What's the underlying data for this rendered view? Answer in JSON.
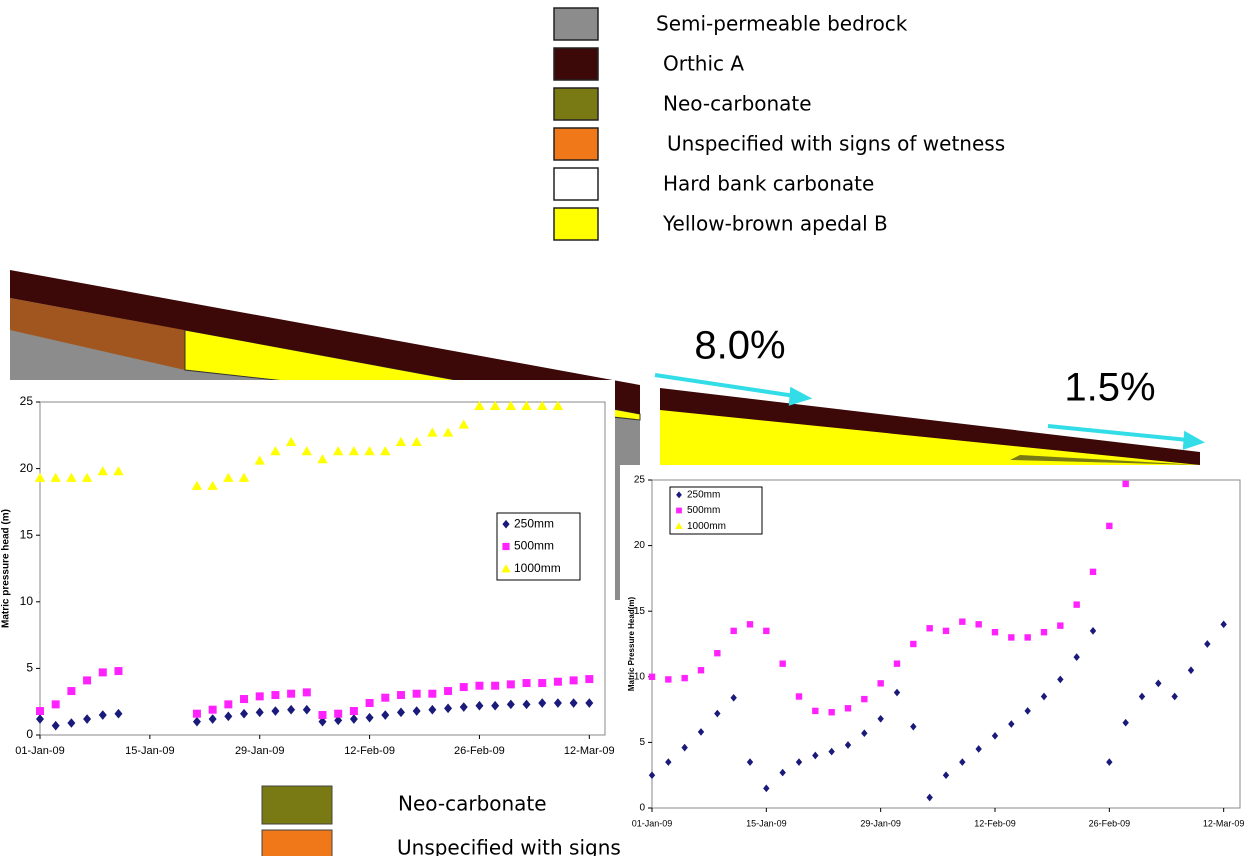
{
  "legend": {
    "items": [
      {
        "label": "Semi-permeable bedrock",
        "color": "#8c8c8c"
      },
      {
        "label": "Orthic A",
        "color": "#3c0808"
      },
      {
        "label": "Neo-carbonate",
        "color": "#7a7a14"
      },
      {
        "label": "Unspecified with signs of wetness",
        "color": "#f07818"
      },
      {
        "label": "Hard bank carbonate",
        "color": "#ffffff"
      },
      {
        "label": "Yellow-brown apedal B",
        "color": "#ffff00"
      }
    ]
  },
  "slopes": [
    "8.0%",
    "1.5%"
  ],
  "bottom_legend": {
    "items": [
      {
        "label": "Neo-carbonate",
        "color": "#7a7a14"
      },
      {
        "label": "Unspecified with signs of wetness",
        "color": "#f07818"
      }
    ]
  },
  "chart_data": [
    {
      "type": "scatter",
      "ylabel": "Matric pressure head (m)",
      "x": [
        "01-Jan-09",
        "03-Jan-09",
        "05-Jan-09",
        "07-Jan-09",
        "09-Jan-09",
        "11-Jan-09",
        "13-Jan-09",
        "15-Jan-09",
        "17-Jan-09",
        "19-Jan-09",
        "21-Jan-09",
        "23-Jan-09",
        "25-Jan-09",
        "27-Jan-09",
        "29-Jan-09",
        "31-Jan-09",
        "02-Feb-09",
        "04-Feb-09",
        "06-Feb-09",
        "08-Feb-09",
        "10-Feb-09",
        "12-Feb-09",
        "14-Feb-09",
        "16-Feb-09",
        "18-Feb-09",
        "20-Feb-09",
        "22-Feb-09",
        "24-Feb-09",
        "26-Feb-09",
        "28-Feb-09",
        "02-Mar-09",
        "04-Mar-09",
        "06-Mar-09",
        "08-Mar-09",
        "10-Mar-09",
        "12-Mar-09"
      ],
      "xlim": [
        "01-Jan-09",
        "14-Mar-09"
      ],
      "xticks": [
        "01-Jan-09",
        "15-Jan-09",
        "29-Jan-09",
        "12-Feb-09",
        "26-Feb-09",
        "12-Mar-09"
      ],
      "ylim": [
        0,
        25
      ],
      "yticks": [
        0,
        5,
        10,
        15,
        20,
        25
      ],
      "series": [
        {
          "name": "250mm",
          "color": "#1a1a7a",
          "marker": "diamond",
          "values": [
            1.2,
            0.7,
            0.9,
            1.2,
            1.5,
            1.6,
            null,
            null,
            null,
            null,
            1.0,
            1.2,
            1.4,
            1.6,
            1.7,
            1.8,
            1.9,
            1.9,
            1.0,
            1.1,
            1.2,
            1.3,
            1.5,
            1.7,
            1.8,
            1.9,
            2.0,
            2.1,
            2.2,
            2.2,
            2.3,
            2.3,
            2.4,
            2.4,
            2.4,
            2.4
          ]
        },
        {
          "name": "500mm",
          "color": "#ff22ff",
          "marker": "square",
          "values": [
            1.8,
            2.3,
            3.3,
            4.1,
            4.7,
            4.8,
            null,
            null,
            null,
            null,
            1.6,
            1.9,
            2.3,
            2.7,
            2.9,
            3.0,
            3.1,
            3.2,
            1.5,
            1.6,
            1.8,
            2.4,
            2.8,
            3.0,
            3.1,
            3.1,
            3.3,
            3.6,
            3.7,
            3.7,
            3.8,
            3.9,
            3.9,
            4.0,
            4.1,
            4.2
          ]
        },
        {
          "name": "1000mm",
          "color": "#ffff00",
          "marker": "triangle",
          "values": [
            19.3,
            19.3,
            19.3,
            19.3,
            19.8,
            19.8,
            null,
            null,
            null,
            null,
            18.7,
            18.7,
            19.3,
            19.3,
            20.6,
            21.3,
            22,
            21.3,
            20.7,
            21.3,
            21.3,
            21.3,
            21.3,
            22,
            22,
            22.7,
            22.7,
            23.3,
            24.7,
            24.7,
            24.7,
            24.7,
            24.7,
            24.7,
            null,
            null
          ]
        }
      ]
    },
    {
      "type": "scatter",
      "ylabel": "Matric Pressure Head(m)",
      "x": [
        "01-Jan-09",
        "03-Jan-09",
        "05-Jan-09",
        "07-Jan-09",
        "09-Jan-09",
        "11-Jan-09",
        "13-Jan-09",
        "15-Jan-09",
        "17-Jan-09",
        "19-Jan-09",
        "21-Jan-09",
        "23-Jan-09",
        "25-Jan-09",
        "27-Jan-09",
        "29-Jan-09",
        "31-Jan-09",
        "02-Feb-09",
        "04-Feb-09",
        "06-Feb-09",
        "08-Feb-09",
        "10-Feb-09",
        "12-Feb-09",
        "14-Feb-09",
        "16-Feb-09",
        "18-Feb-09",
        "20-Feb-09",
        "22-Feb-09",
        "24-Feb-09",
        "26-Feb-09",
        "28-Feb-09",
        "02-Mar-09",
        "04-Mar-09",
        "06-Mar-09",
        "08-Mar-09",
        "10-Mar-09",
        "12-Mar-09"
      ],
      "xlim": [
        "01-Jan-09",
        "14-Mar-09"
      ],
      "xticks": [
        "01-Jan-09",
        "15-Jan-09",
        "29-Jan-09",
        "12-Feb-09",
        "26-Feb-09",
        "12-Mar-09"
      ],
      "ylim": [
        0,
        25
      ],
      "yticks": [
        0,
        5,
        10,
        15,
        20,
        25
      ],
      "series": [
        {
          "name": "250mm",
          "color": "#1a1a7a",
          "marker": "diamond",
          "values": [
            2.5,
            3.5,
            4.6,
            5.8,
            7.2,
            8.4,
            3.5,
            1.5,
            2.7,
            3.5,
            4.0,
            4.3,
            4.8,
            5.7,
            6.8,
            8.8,
            6.2,
            0.8,
            2.5,
            3.5,
            4.5,
            5.5,
            6.4,
            7.4,
            8.5,
            9.8,
            11.5,
            13.5,
            3.5,
            6.5,
            8.5,
            9.5,
            8.5,
            10.5,
            12.5,
            14
          ]
        },
        {
          "name": "500mm",
          "color": "#ff22ff",
          "marker": "square",
          "values": [
            10,
            9.8,
            9.9,
            10.5,
            11.8,
            13.5,
            14,
            13.5,
            11,
            8.5,
            7.4,
            7.3,
            7.6,
            8.3,
            9.5,
            11,
            12.5,
            13.7,
            13.5,
            14.2,
            14,
            13.4,
            13,
            13,
            13.4,
            13.9,
            15.5,
            18,
            21.5,
            24.7,
            null,
            null,
            null,
            null,
            null,
            null
          ]
        },
        {
          "name": "1000mm",
          "color": "#ffff00",
          "marker": "triangle",
          "values": [
            null,
            null,
            null,
            null,
            null,
            null,
            null,
            null,
            null,
            null,
            null,
            null,
            null,
            null,
            null,
            null,
            null,
            null,
            null,
            null,
            null,
            null,
            null,
            null,
            null,
            null,
            null,
            null,
            null,
            null,
            null,
            null,
            null,
            null,
            null,
            null
          ]
        }
      ]
    }
  ]
}
